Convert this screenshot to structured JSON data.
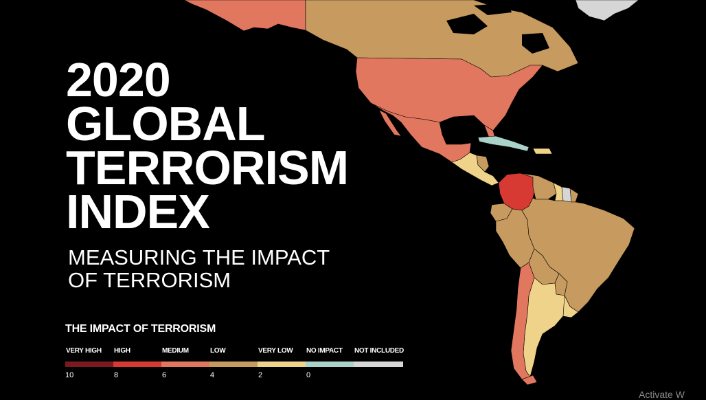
{
  "title_lines": [
    "2020",
    "GLOBAL",
    "TERRORISM",
    "INDEX"
  ],
  "subtitle_lines": [
    "MEASURING THE IMPACT",
    "OF TERRORISM"
  ],
  "legend": {
    "title": "THE IMPACT OF TERRORISM",
    "categories": [
      {
        "label": "VERY HIGH",
        "color": "#7a1a1e"
      },
      {
        "label": "HIGH",
        "color": "#d63a33"
      },
      {
        "label": "MEDIUM",
        "color": "#e2775f"
      },
      {
        "label": "LOW",
        "color": "#c79a5f"
      },
      {
        "label": "VERY LOW",
        "color": "#f0d38a"
      },
      {
        "label": "NO IMPACT",
        "color": "#a9d3c9"
      },
      {
        "label": "NOT INCLUDED",
        "color": "#d6d6d6"
      }
    ],
    "ticks": [
      "10",
      "8",
      "6",
      "4",
      "2",
      "0"
    ]
  },
  "map": {
    "region": "Americas",
    "countries": [
      {
        "name": "Alaska",
        "impact": "MEDIUM"
      },
      {
        "name": "Canada",
        "impact": "LOW"
      },
      {
        "name": "Greenland",
        "impact": "NOT INCLUDED"
      },
      {
        "name": "United States",
        "impact": "MEDIUM"
      },
      {
        "name": "Mexico",
        "impact": "MEDIUM"
      },
      {
        "name": "Cuba",
        "impact": "NO IMPACT"
      },
      {
        "name": "Central America",
        "impact": "VERY LOW"
      },
      {
        "name": "Nicaragua",
        "impact": "LOW"
      },
      {
        "name": "Colombia",
        "impact": "HIGH"
      },
      {
        "name": "Venezuela",
        "impact": "LOW"
      },
      {
        "name": "Guyana",
        "impact": "VERY LOW"
      },
      {
        "name": "Suriname",
        "impact": "NOT INCLUDED"
      },
      {
        "name": "French Guiana",
        "impact": "LOW"
      },
      {
        "name": "Ecuador",
        "impact": "LOW"
      },
      {
        "name": "Peru",
        "impact": "LOW"
      },
      {
        "name": "Brazil",
        "impact": "LOW"
      },
      {
        "name": "Bolivia",
        "impact": "LOW"
      },
      {
        "name": "Paraguay",
        "impact": "LOW"
      },
      {
        "name": "Chile",
        "impact": "MEDIUM"
      },
      {
        "name": "Argentina",
        "impact": "VERY LOW"
      },
      {
        "name": "Uruguay",
        "impact": "VERY LOW"
      }
    ]
  },
  "watermark": "Activate W"
}
